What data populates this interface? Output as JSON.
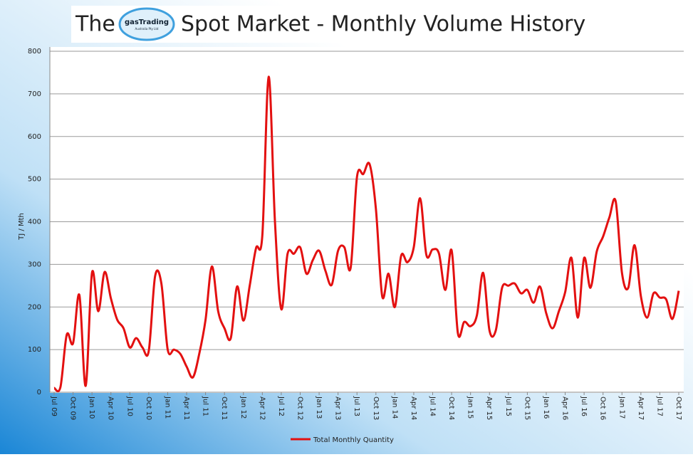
{
  "chart_data": {
    "type": "line",
    "title_prefix": "The",
    "logo_text": "gasTrading",
    "logo_subtext": "Australia Pty Ltd",
    "title": "Spot Market - Monthly Volume History",
    "y_label": "TJ / Mth",
    "categories": [
      "Jul 09",
      null,
      null,
      "Oct 09",
      null,
      null,
      "Jan 10",
      null,
      null,
      "Apr 10",
      null,
      null,
      "Jul 10",
      null,
      null,
      "Oct 10",
      null,
      null,
      "Jan 11",
      null,
      null,
      "Apr 11",
      null,
      null,
      "Jul 11",
      null,
      null,
      "Oct 11",
      null,
      null,
      "Jan 12",
      null,
      null,
      "Apr 12",
      null,
      null,
      "Jul 12",
      null,
      null,
      "Oct 12",
      null,
      null,
      "Jan 13",
      null,
      null,
      "Apr 13",
      null,
      null,
      "Jul 13",
      null,
      null,
      "Oct 13",
      null,
      null,
      "Jan 14",
      null,
      null,
      "Apr 14",
      null,
      null,
      "Jul 14",
      null,
      null,
      "Oct 14",
      null,
      null,
      "Jan 15",
      null,
      null,
      "Apr 15",
      null,
      null,
      "Jul 15",
      null,
      null,
      "Oct 15",
      null,
      null,
      "Jan 16",
      null,
      null,
      "Apr 16",
      null,
      null,
      "Jul 16",
      null,
      null,
      "Oct 16",
      null,
      null,
      "Jan 17",
      null,
      null,
      "Apr 17",
      null,
      null,
      "Jul 17",
      null,
      null,
      "Oct 17"
    ],
    "series": [
      {
        "name": "Total Monthly Quantity",
        "color": "#e31010",
        "values": [
          10,
          12,
          135,
          115,
          228,
          15,
          280,
          190,
          282,
          220,
          170,
          150,
          105,
          127,
          105,
          97,
          272,
          255,
          100,
          100,
          90,
          60,
          35,
          90,
          170,
          295,
          190,
          150,
          127,
          248,
          168,
          250,
          338,
          368,
          740,
          400,
          195,
          325,
          325,
          340,
          278,
          310,
          332,
          285,
          252,
          332,
          340,
          292,
          505,
          512,
          535,
          430,
          225,
          278,
          200,
          320,
          305,
          340,
          455,
          322,
          335,
          325,
          240,
          333,
          138,
          165,
          155,
          180,
          280,
          145,
          145,
          245,
          250,
          255,
          232,
          240,
          210,
          248,
          185,
          150,
          190,
          235,
          315,
          175,
          315,
          245,
          330,
          365,
          410,
          448,
          280,
          245,
          345,
          225,
          175,
          232,
          222,
          218,
          172,
          238
        ]
      }
    ],
    "ylim": [
      0,
      800
    ],
    "yticks": [
      0,
      100,
      200,
      300,
      400,
      500,
      600,
      700,
      800
    ],
    "grid": true,
    "legend": "bottom"
  }
}
